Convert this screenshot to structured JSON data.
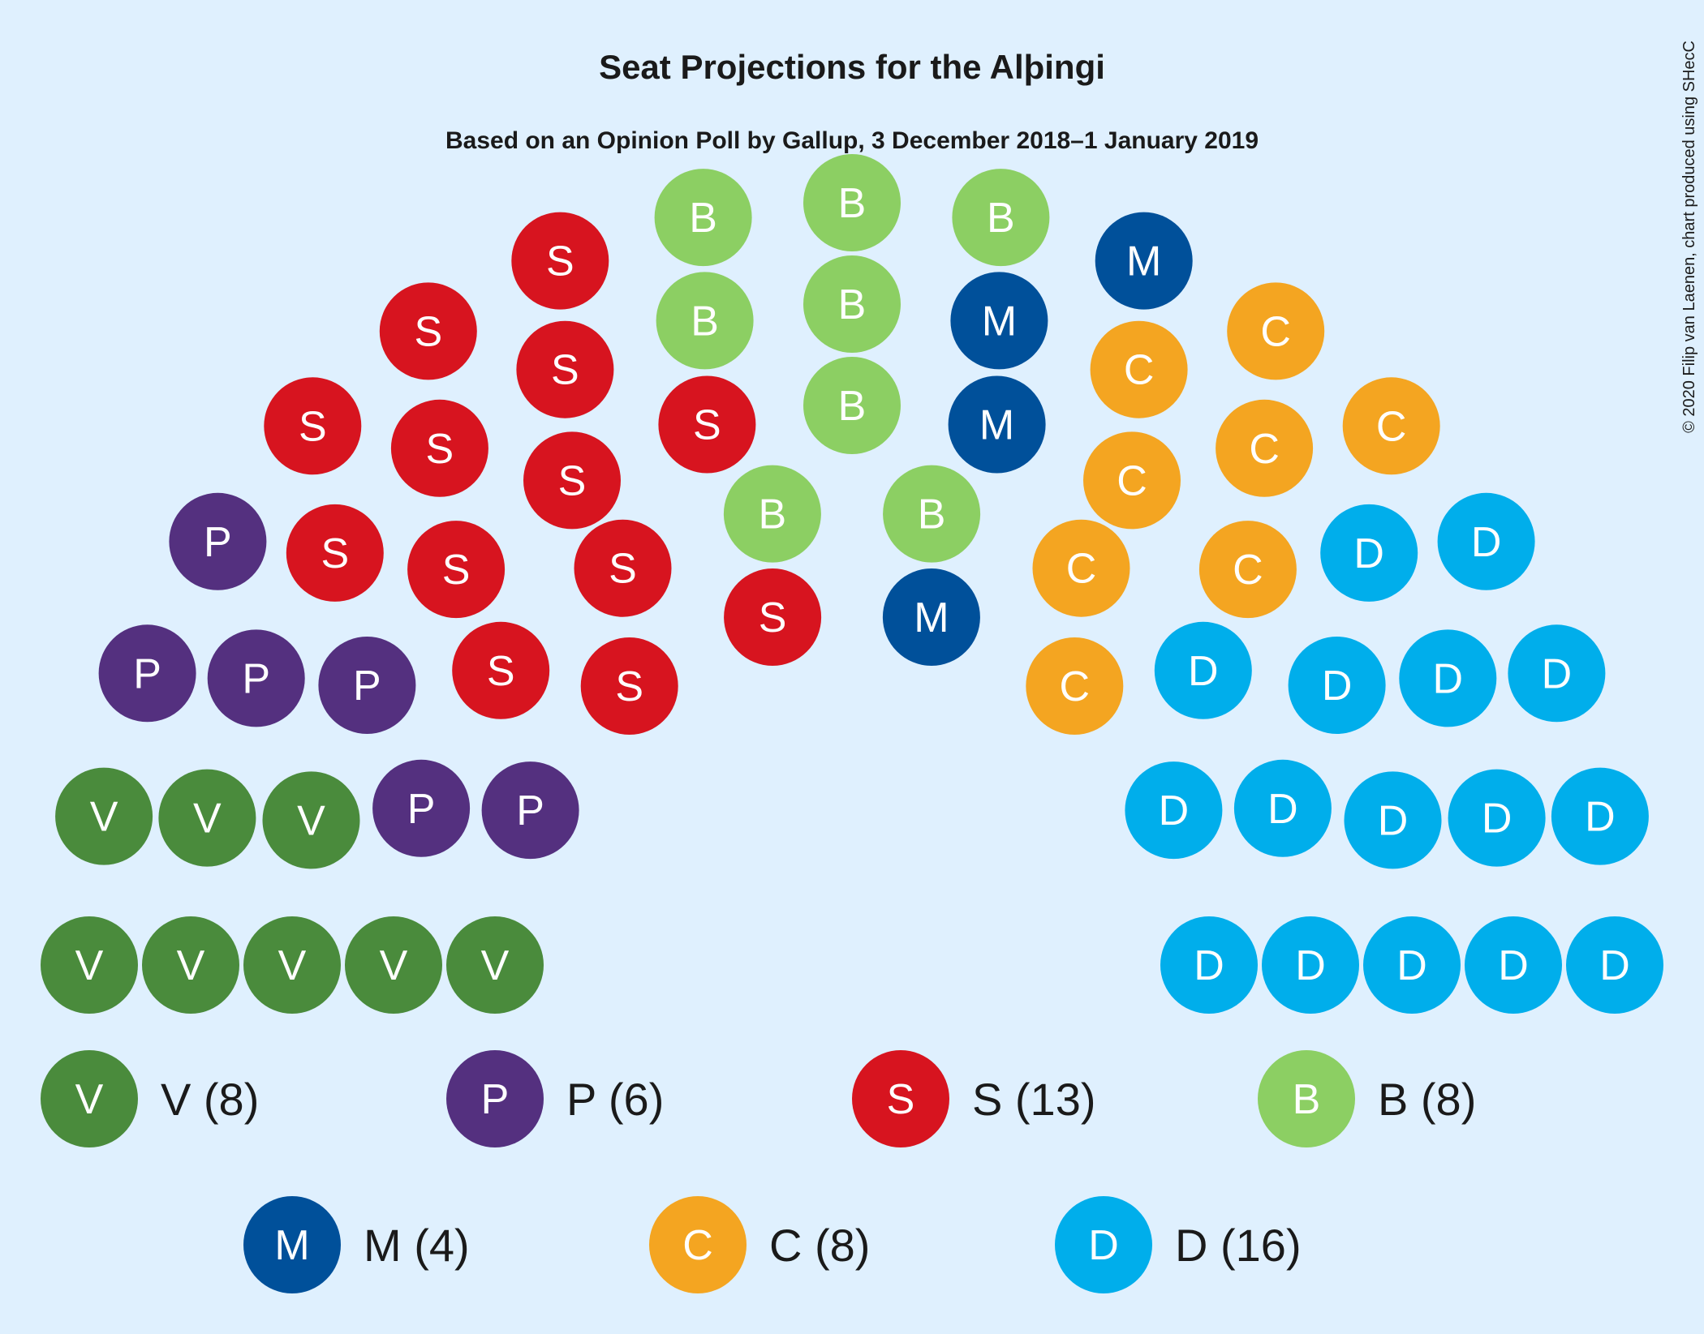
{
  "chart_data": {
    "type": "parliament",
    "title": "Seat Projections for the Alþingi",
    "subtitle": "Based on an Opinion Poll by Gallup, 3 December 2018–1 January 2019",
    "credit": "© 2020 Filip van Laenen, chart produced using SHecC",
    "total_seats": 63,
    "parties": [
      {
        "letter": "V",
        "seats": 8,
        "color": "#4a8b3c",
        "legend": "V (8)"
      },
      {
        "letter": "P",
        "seats": 6,
        "color": "#54307f",
        "legend": "P (6)"
      },
      {
        "letter": "S",
        "seats": 13,
        "color": "#d7141f",
        "legend": "S (13)"
      },
      {
        "letter": "B",
        "seats": 8,
        "color": "#8ccf63",
        "legend": "B (8)"
      },
      {
        "letter": "M",
        "seats": 4,
        "color": "#00509a",
        "legend": "M (4)"
      },
      {
        "letter": "C",
        "seats": 8,
        "color": "#f4a521",
        "legend": "C (8)"
      },
      {
        "letter": "D",
        "seats": 16,
        "color": "#00aeeb",
        "legend": "D (16)"
      }
    ]
  }
}
